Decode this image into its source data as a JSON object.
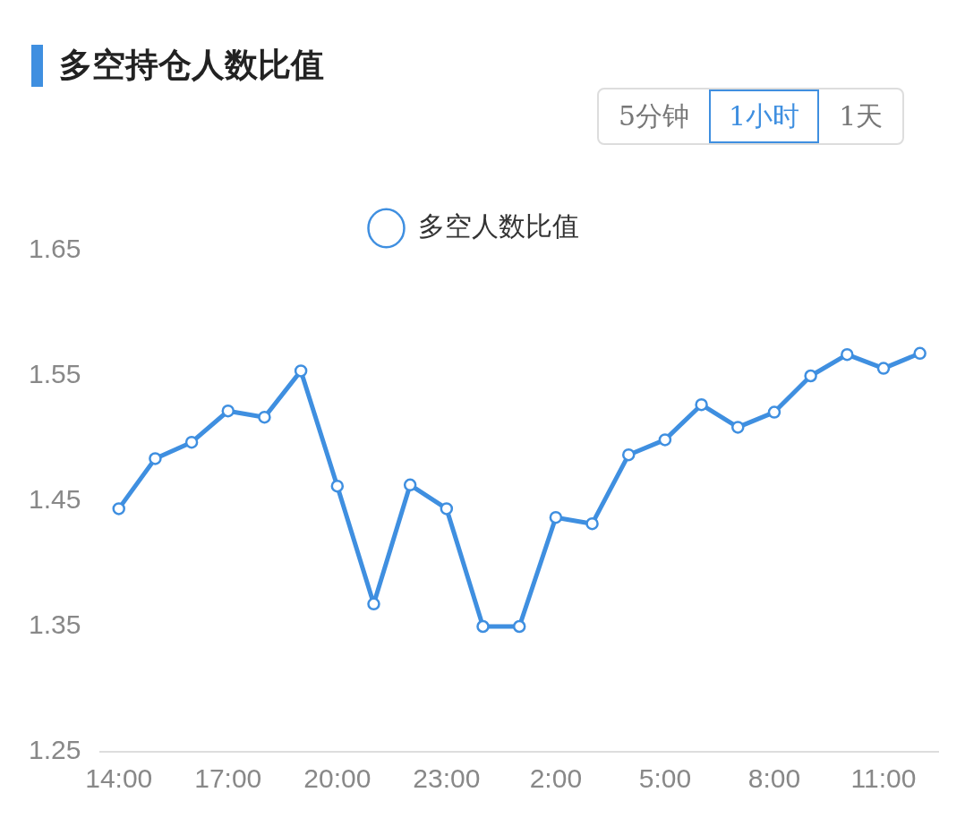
{
  "chart_data": {
    "type": "line",
    "title": "多空持仓人数比值",
    "annotations": [
      "5分钟",
      "1小时",
      "1天"
    ],
    "categories": [
      "14:00",
      null,
      null,
      "17:00",
      null,
      null,
      "20:00",
      null,
      null,
      "23:00",
      null,
      null,
      "2:00",
      null,
      null,
      "5:00",
      null,
      null,
      "8:00",
      null,
      null,
      "11:00",
      null
    ],
    "series": [
      {
        "name": "多空人数比值",
        "color": "#3f8fe0",
        "values": [
          1.444,
          1.484,
          1.497,
          1.522,
          1.517,
          1.554,
          1.462,
          1.368,
          1.463,
          1.444,
          1.35,
          1.35,
          1.437,
          1.432,
          1.487,
          1.499,
          1.527,
          1.509,
          1.521,
          1.55,
          1.567,
          1.556,
          1.568
        ]
      }
    ],
    "ylim": [
      1.25,
      1.65
    ],
    "yticks": [
      1.25,
      1.35,
      1.45,
      1.55,
      1.65
    ],
    "grid": false,
    "legend": "top",
    "marker": "circle",
    "line_style": "solid"
  }
}
